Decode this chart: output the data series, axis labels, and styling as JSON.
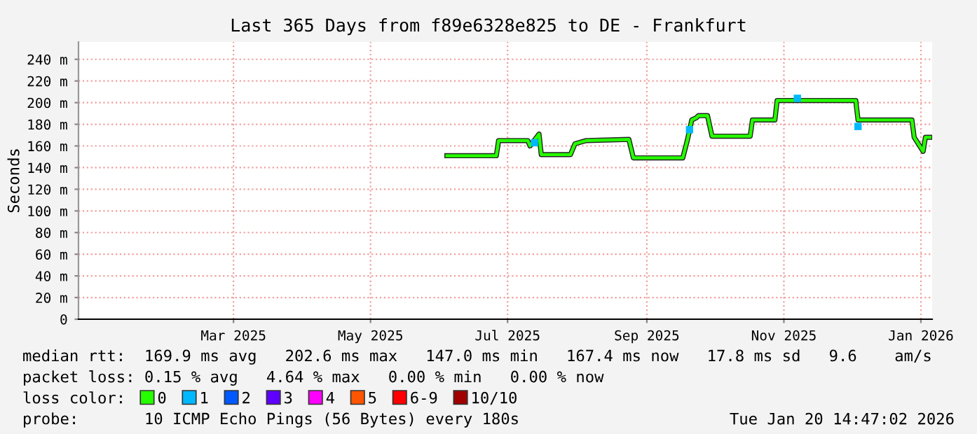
{
  "chart_data": {
    "type": "line",
    "title": "Last 365 Days from f89e6328e825 to DE - Frankfurt",
    "ylabel": "Seconds",
    "xlim": [
      "2025-01-06",
      "2026-01-21"
    ],
    "xticks": [
      {
        "value": "2025-03-16",
        "label": "Mar 2025"
      },
      {
        "value": "2025-05-16",
        "label": "May 2025"
      },
      {
        "value": "2025-07-16",
        "label": "Jul 2025"
      },
      {
        "value": "2025-09-16",
        "label": "Sep 2025"
      },
      {
        "value": "2025-11-16",
        "label": "Nov 2025"
      },
      {
        "value": "2026-01-16",
        "label": "Jan 2026"
      }
    ],
    "ylim": [
      0,
      256
    ],
    "yticks": [
      0,
      {
        "value": 20,
        "label": "20 m"
      },
      {
        "value": 40,
        "label": "40 m"
      },
      {
        "value": 60,
        "label": "60 m"
      },
      {
        "value": 80,
        "label": "80 m"
      },
      {
        "value": 100,
        "label": "100 m"
      },
      {
        "value": 120,
        "label": "120 m"
      },
      {
        "value": 140,
        "label": "140 m"
      },
      {
        "value": 160,
        "label": "160 m"
      },
      {
        "value": 180,
        "label": "180 m"
      },
      {
        "value": 200,
        "label": "200 m"
      },
      {
        "value": 220,
        "label": "220 m"
      },
      {
        "value": 240,
        "label": "240 m"
      }
    ],
    "grid": true,
    "legend": "bottom",
    "series": [
      {
        "name": "0",
        "color": "#26ff00",
        "x": [
          "2025-06-19",
          "2025-07-11",
          "2025-07-12",
          "2025-07-25",
          "2025-07-26",
          "2025-07-30",
          "2025-07-31",
          "2025-08-13",
          "2025-08-15",
          "2025-08-20",
          "2025-09-08",
          "2025-09-10",
          "2025-10-02",
          "2025-10-04",
          "2025-10-06",
          "2025-10-08",
          "2025-10-09",
          "2025-10-13",
          "2025-10-15",
          "2025-11-01",
          "2025-11-02",
          "2025-11-12",
          "2025-11-13",
          "2025-12-18",
          "2025-12-19",
          "2026-01-12",
          "2026-01-13",
          "2026-01-17",
          "2026-01-18",
          "2026-01-20"
        ],
        "values": [
          151,
          151,
          165,
          165,
          160,
          171,
          152,
          152,
          162,
          165,
          166,
          149,
          149,
          165,
          184,
          186,
          188,
          188,
          169,
          169,
          184,
          184,
          202,
          202,
          184,
          184,
          168,
          155,
          168,
          168
        ]
      },
      {
        "name": "1",
        "color": "#00b8ff",
        "type": "scatter",
        "marker": "square",
        "x": [
          "2025-07-28",
          "2025-10-05",
          "2025-11-22",
          "2025-12-19"
        ],
        "values": [
          163,
          175,
          204,
          178
        ]
      },
      {
        "name": "2",
        "color": "#0059ff",
        "type": "scatter"
      },
      {
        "name": "3",
        "color": "#5e00ff",
        "type": "scatter"
      },
      {
        "name": "4",
        "color": "#ff00ff",
        "type": "scatter"
      },
      {
        "name": "5",
        "color": "#ff5500",
        "type": "scatter"
      },
      {
        "name": "6-9",
        "color": "#ff0000",
        "type": "scatter"
      },
      {
        "name": "10/10",
        "color": "#a10000",
        "type": "scatter"
      }
    ],
    "annotations": [
      "median rtt:  169.9 ms avg   202.6 ms max   147.0 ms min   167.4 ms now   17.8 ms sd   9.6    am/s",
      "packet loss: 0.15 % avg   4.64 % max   0.00 % min   0.00 % now",
      "loss color:",
      "probe:       10 ICMP Echo Pings (56 Bytes) every 180s",
      "Tue Jan 20 14:47:02 2026"
    ]
  }
}
